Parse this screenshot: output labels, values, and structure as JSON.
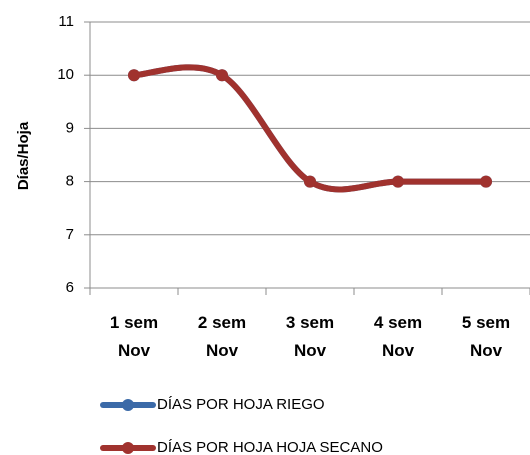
{
  "chart_data": {
    "type": "line",
    "y_label": "Días/Hoja",
    "categories": [
      "1 sem Nov",
      "2 sem Nov",
      "3 sem Nov",
      "4 sem Nov",
      "5 sem Nov"
    ],
    "series": [
      {
        "name": "DÍAS POR HOJA RIEGO",
        "color": "#3b6aa8",
        "values": [
          10,
          10,
          8,
          8,
          8
        ]
      },
      {
        "name": "DÍAS POR HOJA HOJA SECANO",
        "color": "#a0322e",
        "values": [
          10,
          10,
          8,
          8,
          8
        ]
      }
    ],
    "ylim": [
      6,
      11
    ],
    "yticks": [
      6,
      7,
      8,
      9,
      10,
      11
    ],
    "grid": true,
    "smooth": true,
    "legend": "bottom"
  }
}
